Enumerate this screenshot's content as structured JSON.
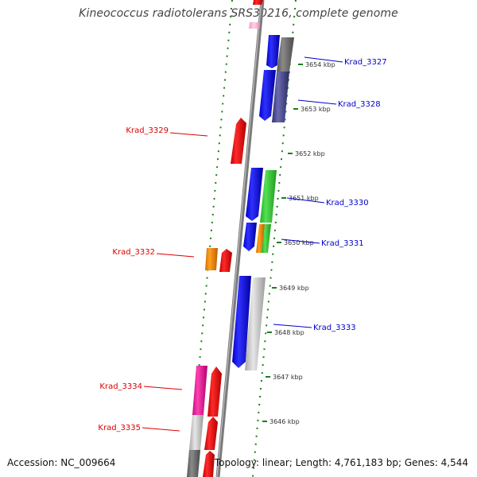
{
  "title": "Kineococcus radiotolerans SRS30216, complete genome",
  "footer": {
    "accession": "Accession: NC_009664",
    "stats": "Topology: linear; Length: 4,761,183 bp; Genes: 4,544"
  },
  "colors": {
    "forward_label": "#0000cc",
    "reverse_label": "#dd0000",
    "ruler_dots": "#1a7f1a",
    "backbone": "#888888"
  },
  "scale": {
    "unit": "kbp",
    "ticks": [
      {
        "label": "3654 kbp"
      },
      {
        "label": "3653 kbp"
      },
      {
        "label": "3652 kbp"
      },
      {
        "label": "3651 kbp"
      },
      {
        "label": "3650 kbp"
      },
      {
        "label": "3649 kbp"
      },
      {
        "label": "3648 kbp"
      },
      {
        "label": "3647 kbp"
      },
      {
        "label": "3646 kbp"
      }
    ]
  },
  "gene_labels": [
    {
      "name": "Krad_3327",
      "strand": "+"
    },
    {
      "name": "Krad_3328",
      "strand": "+"
    },
    {
      "name": "Krad_3329",
      "strand": "-"
    },
    {
      "name": "Krad_3330",
      "strand": "+"
    },
    {
      "name": "Krad_3331",
      "strand": "+"
    },
    {
      "name": "Krad_3332",
      "strand": "-"
    },
    {
      "name": "Krad_3333",
      "strand": "+"
    },
    {
      "name": "Krad_3334",
      "strand": "-"
    },
    {
      "name": "Krad_3335",
      "strand": "-"
    }
  ]
}
